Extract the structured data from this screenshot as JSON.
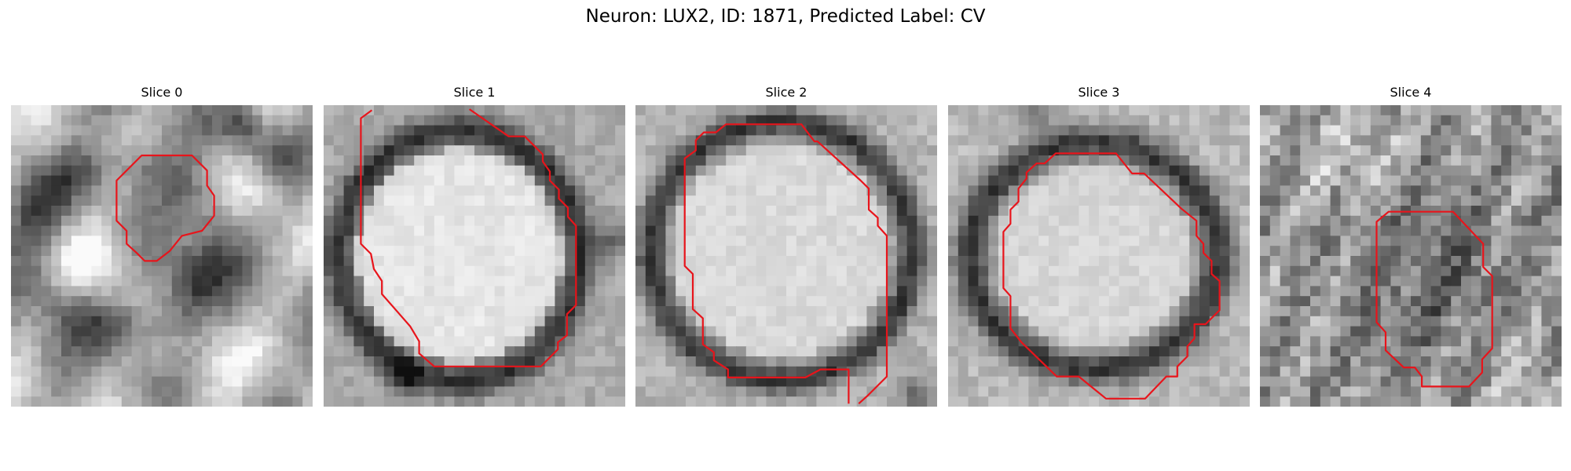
{
  "figure": {
    "title": "Neuron: LUX2, ID: 1871, Predicted Label: CV"
  },
  "panels": [
    {
      "title": "Slice 0"
    },
    {
      "title": "Slice 1"
    },
    {
      "title": "Slice 2"
    },
    {
      "title": "Slice 3"
    },
    {
      "title": "Slice 4"
    }
  ],
  "colors": {
    "contour": "#e8141b"
  }
}
